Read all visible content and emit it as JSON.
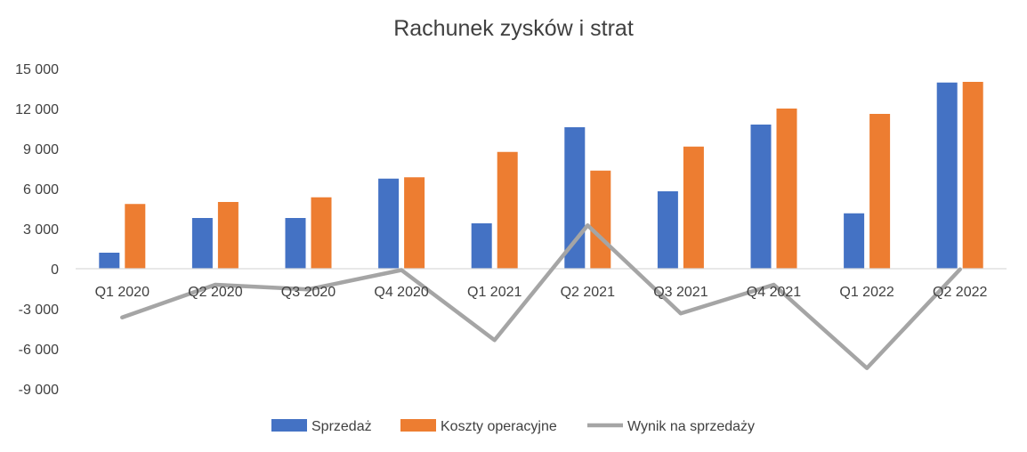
{
  "chart_data": {
    "type": "bar",
    "title": "Rachunek zysków i strat",
    "categories": [
      "Q1 2020",
      "Q2 2020",
      "Q3 2020",
      "Q4 2020",
      "Q1 2021",
      "Q2 2021",
      "Q3 2021",
      "Q4 2021",
      "Q1 2022",
      "Q2 2022"
    ],
    "series": [
      {
        "name": "Sprzedaż",
        "type": "bar",
        "color": "#4472C4",
        "values": [
          1200,
          3800,
          3800,
          6750,
          3400,
          10600,
          5800,
          10800,
          4150,
          13950
        ]
      },
      {
        "name": "Koszty operacyjne",
        "type": "bar",
        "color": "#ED7D31",
        "values": [
          4850,
          5000,
          5350,
          6850,
          8750,
          7350,
          9150,
          12000,
          11600,
          14000
        ]
      },
      {
        "name": "Wynik na sprzedaży",
        "type": "line",
        "color": "#A5A5A5",
        "values": [
          -3650,
          -1200,
          -1550,
          -100,
          -5350,
          3250,
          -3350,
          -1200,
          -7450,
          -50
        ]
      }
    ],
    "ylim": [
      -9000,
      15000
    ],
    "y_ticks": [
      {
        "value": 15000,
        "label": "15 000"
      },
      {
        "value": 12000,
        "label": "12 000"
      },
      {
        "value": 9000,
        "label": "9 000"
      },
      {
        "value": 6000,
        "label": "6 000"
      },
      {
        "value": 3000,
        "label": "3 000"
      },
      {
        "value": 0,
        "label": "0"
      },
      {
        "value": -3000,
        "label": "-3 000"
      },
      {
        "value": -6000,
        "label": "-6 000"
      },
      {
        "value": -9000,
        "label": "-9 000"
      }
    ],
    "grid": false,
    "legend": "bottom"
  }
}
